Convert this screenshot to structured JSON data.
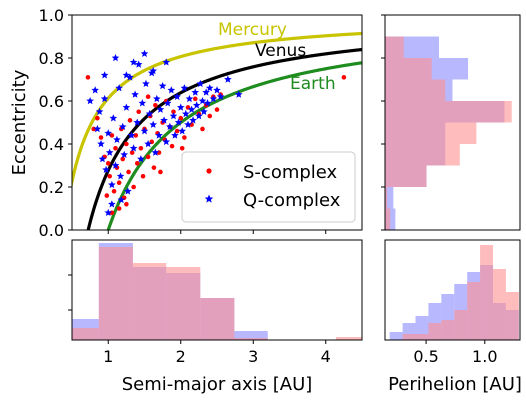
{
  "chart_data": [
    {
      "type": "scatter",
      "panel": "main",
      "xlabel": "",
      "ylabel": "Eccentricity",
      "xlim": [
        0.5,
        4.5
      ],
      "ylim": [
        0.0,
        1.0
      ],
      "xticks": [
        1,
        2,
        3,
        4
      ],
      "yticks": [
        0.0,
        0.2,
        0.4,
        0.6,
        0.8,
        1.0
      ],
      "ytick_labels": [
        "0.0",
        "0.2",
        "0.4",
        "0.6",
        "0.8",
        "1.0"
      ],
      "legend": {
        "position": "lower-right"
      },
      "curves": [
        {
          "name": "Mercury",
          "q_au": 0.387,
          "color": "#c8c400"
        },
        {
          "name": "Venus",
          "q_au": 0.723,
          "color": "#000000"
        },
        {
          "name": "Earth",
          "q_au": 1.0,
          "color": "#1f8c1f"
        }
      ],
      "series": [
        {
          "name": "S-complex",
          "marker": "dot",
          "color": "#ff0000",
          "points": [
            [
              0.72,
              0.71
            ],
            [
              4.25,
              0.71
            ],
            [
              0.8,
              0.47
            ],
            [
              0.85,
              0.52
            ],
            [
              0.9,
              0.43
            ],
            [
              0.95,
              0.34
            ],
            [
              1.0,
              0.31
            ],
            [
              1.02,
              0.25
            ],
            [
              1.05,
              0.44
            ],
            [
              1.08,
              0.18
            ],
            [
              1.1,
              0.38
            ],
            [
              1.12,
              0.29
            ],
            [
              1.15,
              0.22
            ],
            [
              1.18,
              0.47
            ],
            [
              1.2,
              0.33
            ],
            [
              1.22,
              0.15
            ],
            [
              1.25,
              0.4
            ],
            [
              1.28,
              0.27
            ],
            [
              1.3,
              0.51
            ],
            [
              1.33,
              0.36
            ],
            [
              1.35,
              0.2
            ],
            [
              1.38,
              0.44
            ],
            [
              1.4,
              0.31
            ],
            [
              1.42,
              0.55
            ],
            [
              1.45,
              0.38
            ],
            [
              1.48,
              0.25
            ],
            [
              1.5,
              0.47
            ],
            [
              1.55,
              0.34
            ],
            [
              1.58,
              0.53
            ],
            [
              1.6,
              0.41
            ],
            [
              1.63,
              0.29
            ],
            [
              1.65,
              0.58
            ],
            [
              1.68,
              0.45
            ],
            [
              1.7,
              0.36
            ],
            [
              1.75,
              0.5
            ],
            [
              1.78,
              0.42
            ],
            [
              1.8,
              0.6
            ],
            [
              1.85,
              0.48
            ],
            [
              1.88,
              0.39
            ],
            [
              1.9,
              0.55
            ],
            [
              1.95,
              0.46
            ],
            [
              2.0,
              0.52
            ],
            [
              2.05,
              0.43
            ],
            [
              2.1,
              0.57
            ],
            [
              2.15,
              0.49
            ],
            [
              2.2,
              0.61
            ],
            [
              2.25,
              0.54
            ],
            [
              2.3,
              0.47
            ],
            [
              2.35,
              0.58
            ],
            [
              2.4,
              0.53
            ],
            [
              2.45,
              0.62
            ],
            [
              2.5,
              0.56
            ],
            [
              2.55,
              0.63
            ],
            [
              1.15,
              0.1
            ],
            [
              1.25,
              0.12
            ],
            [
              0.98,
              0.16
            ],
            [
              1.05,
              0.08
            ],
            [
              1.55,
              0.62
            ],
            [
              1.72,
              0.27
            ],
            [
              2.02,
              0.38
            ]
          ]
        },
        {
          "name": "Q-complex",
          "marker": "star",
          "color": "#0000ff",
          "points": [
            [
              0.75,
              0.6
            ],
            [
              0.82,
              0.65
            ],
            [
              0.85,
              0.47
            ],
            [
              0.88,
              0.55
            ],
            [
              0.9,
              0.4
            ],
            [
              0.92,
              0.33
            ],
            [
              0.95,
              0.61
            ],
            [
              0.97,
              0.28
            ],
            [
              1.0,
              0.45
            ],
            [
              1.02,
              0.36
            ],
            [
              1.05,
              0.21
            ],
            [
              1.07,
              0.52
            ],
            [
              1.1,
              0.3
            ],
            [
              1.12,
              0.42
            ],
            [
              1.15,
              0.66
            ],
            [
              1.17,
              0.25
            ],
            [
              1.2,
              0.48
            ],
            [
              1.22,
              0.35
            ],
            [
              1.25,
              0.57
            ],
            [
              1.27,
              0.18
            ],
            [
              1.3,
              0.71
            ],
            [
              1.32,
              0.44
            ],
            [
              1.35,
              0.38
            ],
            [
              1.37,
              0.63
            ],
            [
              1.4,
              0.5
            ],
            [
              1.42,
              0.77
            ],
            [
              1.45,
              0.33
            ],
            [
              1.47,
              0.59
            ],
            [
              1.5,
              0.46
            ],
            [
              1.52,
              0.68
            ],
            [
              1.55,
              0.4
            ],
            [
              1.57,
              0.54
            ],
            [
              1.6,
              0.73
            ],
            [
              1.62,
              0.49
            ],
            [
              1.65,
              0.36
            ],
            [
              1.67,
              0.61
            ],
            [
              1.7,
              0.44
            ],
            [
              1.72,
              0.56
            ],
            [
              1.75,
              0.67
            ],
            [
              1.77,
              0.51
            ],
            [
              1.8,
              0.41
            ],
            [
              1.82,
              0.59
            ],
            [
              1.85,
              0.48
            ],
            [
              1.87,
              0.65
            ],
            [
              1.9,
              0.53
            ],
            [
              1.92,
              0.44
            ],
            [
              1.95,
              0.62
            ],
            [
              1.97,
              0.5
            ],
            [
              2.0,
              0.57
            ],
            [
              2.02,
              0.46
            ],
            [
              2.05,
              0.66
            ],
            [
              2.07,
              0.54
            ],
            [
              2.1,
              0.49
            ],
            [
              2.12,
              0.61
            ],
            [
              2.15,
              0.56
            ],
            [
              2.17,
              0.51
            ],
            [
              2.2,
              0.64
            ],
            [
              2.22,
              0.58
            ],
            [
              2.25,
              0.53
            ],
            [
              2.27,
              0.68
            ],
            [
              2.3,
              0.6
            ],
            [
              2.32,
              0.55
            ],
            [
              2.35,
              0.64
            ],
            [
              2.37,
              0.59
            ],
            [
              2.4,
              0.66
            ],
            [
              2.45,
              0.61
            ],
            [
              2.5,
              0.65
            ],
            [
              2.55,
              0.62
            ],
            [
              2.65,
              0.7
            ],
            [
              2.8,
              0.63
            ],
            [
              1.1,
              0.8
            ],
            [
              1.35,
              0.78
            ],
            [
              1.5,
              0.82
            ],
            [
              0.95,
              0.72
            ],
            [
              1.25,
              0.72
            ],
            [
              1.62,
              0.74
            ],
            [
              1.8,
              0.78
            ],
            [
              1.05,
              0.12
            ],
            [
              1.18,
              0.14
            ],
            [
              1.0,
              0.08
            ]
          ]
        }
      ]
    },
    {
      "type": "histogram",
      "panel": "eccentricity-histogram",
      "orientation": "horizontal",
      "xlabel": "",
      "ylabel": "",
      "ylim": [
        0.0,
        1.0
      ],
      "bin_edges": [
        0.0,
        0.1,
        0.2,
        0.3,
        0.4,
        0.5,
        0.6,
        0.7,
        0.8,
        0.9
      ],
      "xlim": [
        0,
        1.3
      ],
      "series": [
        {
          "name": "S-complex",
          "color": "#ff9090",
          "counts": [
            0.05,
            0.02,
            0.4,
            0.72,
            0.88,
            1.22,
            0.58,
            0.45,
            0.18
          ]
        },
        {
          "name": "Q-complex",
          "color": "#8888ff",
          "counts": [
            0.1,
            0.08,
            0.4,
            0.58,
            0.58,
            1.15,
            0.65,
            0.8,
            0.52
          ]
        }
      ]
    },
    {
      "type": "histogram",
      "panel": "semimajor-histogram",
      "orientation": "vertical",
      "xlabel": "Semi-major axis [AU]",
      "ylabel": "",
      "xlim": [
        0.5,
        4.5
      ],
      "xticks": [
        1,
        2,
        3,
        4
      ],
      "xtick_labels": [
        "1",
        "2",
        "3",
        "4"
      ],
      "bin_edges": [
        0.5,
        0.87,
        1.34,
        1.8,
        2.27,
        2.74,
        3.2,
        3.67,
        4.14,
        4.5
      ],
      "ylim": [
        0,
        1.0
      ],
      "series": [
        {
          "name": "S-complex",
          "color": "#ff9090",
          "counts": [
            0.12,
            0.93,
            0.77,
            0.73,
            0.42,
            0.02,
            0.0,
            0.0,
            0.03
          ]
        },
        {
          "name": "Q-complex",
          "color": "#8888ff",
          "counts": [
            0.21,
            0.97,
            0.73,
            0.67,
            0.42,
            0.09,
            0.0,
            0.0,
            0.0
          ]
        }
      ]
    },
    {
      "type": "histogram",
      "panel": "perihelion-histogram",
      "orientation": "vertical",
      "xlabel": "Perihelion [AU]",
      "ylabel": "",
      "xlim": [
        0.15,
        1.3
      ],
      "xticks": [
        0.5,
        1.0
      ],
      "xtick_labels": [
        "0.5",
        "1.0"
      ],
      "bin_edges": [
        0.19,
        0.3,
        0.41,
        0.52,
        0.63,
        0.74,
        0.85,
        0.96,
        1.07,
        1.18,
        1.29
      ],
      "ylim": [
        0,
        1.0
      ],
      "series": [
        {
          "name": "S-complex",
          "color": "#ff9090",
          "counts": [
            0.0,
            0.06,
            0.06,
            0.17,
            0.2,
            0.3,
            0.58,
            0.95,
            0.71,
            0.48
          ]
        },
        {
          "name": "Q-complex",
          "color": "#8888ff",
          "counts": [
            0.08,
            0.17,
            0.24,
            0.37,
            0.46,
            0.56,
            0.68,
            0.75,
            0.37,
            0.3
          ]
        }
      ]
    }
  ],
  "legend": {
    "items": [
      {
        "label": "S-complex",
        "marker": "dot",
        "color": "#ff0000"
      },
      {
        "label": "Q-complex",
        "marker": "star",
        "color": "#0000ff"
      }
    ]
  }
}
